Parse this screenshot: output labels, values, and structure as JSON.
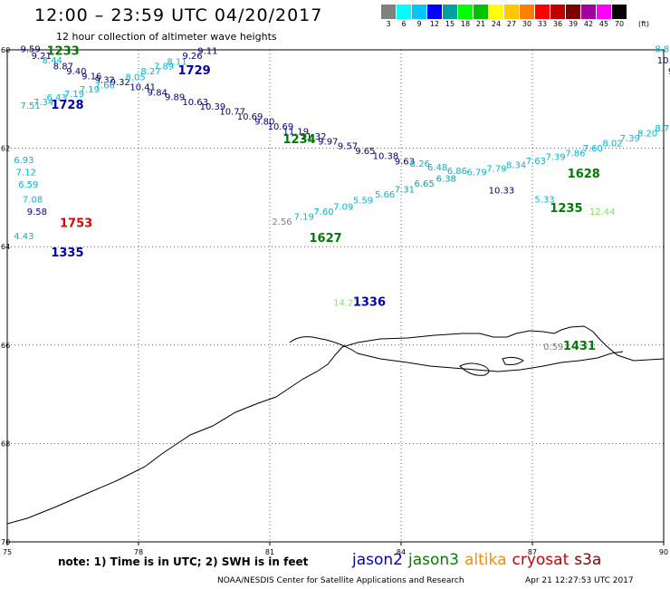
{
  "header": {
    "title": "12:00 – 23:59 UTC 04/20/2017",
    "subtitle": "12 hour collection of altimeter wave heights"
  },
  "colorbar": {
    "colors": [
      "#808080",
      "#00ffff",
      "#00c8ff",
      "#0000ff",
      "#00a0a0",
      "#00ff00",
      "#00c000",
      "#ffff00",
      "#ffc800",
      "#ff8000",
      "#ff0000",
      "#c00000",
      "#800000",
      "#a000a0",
      "#ff00ff",
      "#000000"
    ],
    "labels": [
      "3",
      "6",
      "9",
      "12",
      "15",
      "18",
      "21",
      "24",
      "27",
      "30",
      "33",
      "36",
      "39",
      "42",
      "45",
      "70"
    ],
    "unit": "(ft)"
  },
  "map": {
    "lon_ticks": [
      "75",
      "78",
      "81",
      "84",
      "87",
      "90"
    ],
    "lat_ticks": [
      "60",
      "62",
      "64",
      "66",
      "68",
      "70"
    ],
    "satellite_colors": {
      "jason2": "#0000cc",
      "jason3": "#008000",
      "altika": "#ff8c00",
      "cryosat": "#cc0000",
      "s3a": "#8b0000"
    },
    "swh_colors": {
      "cyan": "#00b8d8",
      "teal": "#0aa0b0",
      "green": "#00a000",
      "lightgreen": "#88e060",
      "navy": "#000080",
      "gray": "#808080"
    },
    "time_labels": [
      {
        "text": "1233",
        "color": "green",
        "lon": 75.9,
        "lat": 60.1
      },
      {
        "text": "1729",
        "color": "navy",
        "lon": 78.9,
        "lat": 60.5
      },
      {
        "text": "1728",
        "color": "navy",
        "lon": 76.0,
        "lat": 61.2
      },
      {
        "text": "1234",
        "color": "green",
        "lon": 81.3,
        "lat": 61.9
      },
      {
        "text": "1628",
        "color": "green",
        "lon": 87.8,
        "lat": 62.6
      },
      {
        "text": "1235",
        "color": "green",
        "lon": 87.4,
        "lat": 63.3
      },
      {
        "text": "1753",
        "color": "red",
        "lon": 76.2,
        "lat": 63.6
      },
      {
        "text": "1627",
        "color": "green",
        "lon": 81.9,
        "lat": 63.9
      },
      {
        "text": "1335",
        "color": "navy",
        "lon": 76.0,
        "lat": 64.2
      },
      {
        "text": "1336",
        "color": "navy",
        "lon": 82.9,
        "lat": 65.2
      },
      {
        "text": "1431",
        "color": "green",
        "lon": 87.7,
        "lat": 66.1
      }
    ],
    "swh_values": [
      {
        "text": "9.59",
        "color": "navy",
        "lon": 75.3,
        "lat": 60.05
      },
      {
        "text": "9.21",
        "color": "navy",
        "lon": 75.55,
        "lat": 60.18
      },
      {
        "text": "8.44",
        "color": "cyan",
        "lon": 75.8,
        "lat": 60.28
      },
      {
        "text": "8.87",
        "color": "navy",
        "lon": 76.05,
        "lat": 60.4
      },
      {
        "text": "9.40",
        "color": "navy",
        "lon": 76.35,
        "lat": 60.5
      },
      {
        "text": "9.16",
        "color": "navy",
        "lon": 76.7,
        "lat": 60.6
      },
      {
        "text": "9.32",
        "color": "navy",
        "lon": 77.0,
        "lat": 60.67
      },
      {
        "text": "9.32",
        "color": "navy",
        "lon": 77.35,
        "lat": 60.72
      },
      {
        "text": "8.05",
        "color": "cyan",
        "lon": 77.7,
        "lat": 60.62
      },
      {
        "text": "8.27",
        "color": "cyan",
        "lon": 78.05,
        "lat": 60.5
      },
      {
        "text": "7.89",
        "color": "cyan",
        "lon": 78.35,
        "lat": 60.4
      },
      {
        "text": "8.11",
        "color": "cyan",
        "lon": 78.65,
        "lat": 60.3
      },
      {
        "text": "9.26",
        "color": "navy",
        "lon": 79.0,
        "lat": 60.18
      },
      {
        "text": "9.11",
        "color": "navy",
        "lon": 79.35,
        "lat": 60.08
      },
      {
        "text": "7.51",
        "color": "cyan",
        "lon": 75.3,
        "lat": 61.2
      },
      {
        "text": "7.34",
        "color": "cyan",
        "lon": 75.6,
        "lat": 61.12
      },
      {
        "text": "6.43",
        "color": "cyan",
        "lon": 75.9,
        "lat": 61.03
      },
      {
        "text": "7.19",
        "color": "cyan",
        "lon": 76.3,
        "lat": 60.96
      },
      {
        "text": "7.19",
        "color": "cyan",
        "lon": 76.65,
        "lat": 60.87
      },
      {
        "text": "7.66",
        "color": "cyan",
        "lon": 77.0,
        "lat": 60.78
      },
      {
        "text": "10.41",
        "color": "navy",
        "lon": 77.8,
        "lat": 60.82
      },
      {
        "text": "9.84",
        "color": "navy",
        "lon": 78.2,
        "lat": 60.93
      },
      {
        "text": "9.89",
        "color": "navy",
        "lon": 78.6,
        "lat": 61.02
      },
      {
        "text": "10.63",
        "color": "navy",
        "lon": 79.0,
        "lat": 61.12
      },
      {
        "text": "10.39",
        "color": "navy",
        "lon": 79.4,
        "lat": 61.22
      },
      {
        "text": "10.77",
        "color": "navy",
        "lon": 79.85,
        "lat": 61.32
      },
      {
        "text": "10.69",
        "color": "navy",
        "lon": 80.25,
        "lat": 61.42
      },
      {
        "text": "9.80",
        "color": "navy",
        "lon": 80.65,
        "lat": 61.52
      },
      {
        "text": "10.69",
        "color": "navy",
        "lon": 80.95,
        "lat": 61.62
      },
      {
        "text": "11.19",
        "color": "navy",
        "lon": 81.3,
        "lat": 61.72
      },
      {
        "text": "11.32",
        "color": "navy",
        "lon": 81.7,
        "lat": 61.82
      },
      {
        "text": "9.97",
        "color": "navy",
        "lon": 82.1,
        "lat": 61.92
      },
      {
        "text": "9.57",
        "color": "navy",
        "lon": 82.55,
        "lat": 62.02
      },
      {
        "text": "9.65",
        "color": "navy",
        "lon": 82.95,
        "lat": 62.12
      },
      {
        "text": "10.38",
        "color": "navy",
        "lon": 83.35,
        "lat": 62.22
      },
      {
        "text": "9.63",
        "color": "navy",
        "lon": 83.85,
        "lat": 62.33
      },
      {
        "text": "10.33",
        "color": "navy",
        "lon": 86.0,
        "lat": 62.92
      },
      {
        "text": "6.93",
        "color": "cyan",
        "lon": 75.15,
        "lat": 62.3
      },
      {
        "text": "7.12",
        "color": "cyan",
        "lon": 75.2,
        "lat": 62.55
      },
      {
        "text": "6.59",
        "color": "cyan",
        "lon": 75.25,
        "lat": 62.8
      },
      {
        "text": "7.08",
        "color": "cyan",
        "lon": 75.35,
        "lat": 63.1
      },
      {
        "text": "9.58",
        "color": "navy",
        "lon": 75.45,
        "lat": 63.35
      },
      {
        "text": "4.43",
        "color": "cyan",
        "lon": 75.15,
        "lat": 63.85
      },
      {
        "text": "2.56",
        "color": "gray",
        "lon": 81.05,
        "lat": 63.55
      },
      {
        "text": "7.19",
        "color": "cyan",
        "lon": 81.55,
        "lat": 63.45
      },
      {
        "text": "7.60",
        "color": "cyan",
        "lon": 82.0,
        "lat": 63.35
      },
      {
        "text": "7.09",
        "color": "cyan",
        "lon": 82.45,
        "lat": 63.25
      },
      {
        "text": "5.59",
        "color": "cyan",
        "lon": 82.9,
        "lat": 63.12
      },
      {
        "text": "5.66",
        "color": "cyan",
        "lon": 83.4,
        "lat": 63.0
      },
      {
        "text": "7.31",
        "color": "teal",
        "lon": 83.85,
        "lat": 62.9
      },
      {
        "text": "6.65",
        "color": "teal",
        "lon": 84.3,
        "lat": 62.78
      },
      {
        "text": "6.38",
        "color": "teal",
        "lon": 84.8,
        "lat": 62.68
      },
      {
        "text": "8.26",
        "color": "cyan",
        "lon": 84.2,
        "lat": 62.38
      },
      {
        "text": "6.48",
        "color": "cyan",
        "lon": 84.6,
        "lat": 62.45
      },
      {
        "text": "6.86",
        "color": "cyan",
        "lon": 85.05,
        "lat": 62.52
      },
      {
        "text": "6.79",
        "color": "cyan",
        "lon": 85.5,
        "lat": 62.55
      },
      {
        "text": "7.79",
        "color": "cyan",
        "lon": 85.95,
        "lat": 62.48
      },
      {
        "text": "8.34",
        "color": "cyan",
        "lon": 86.4,
        "lat": 62.4
      },
      {
        "text": "7.63",
        "color": "cyan",
        "lon": 86.85,
        "lat": 62.32
      },
      {
        "text": "7.39",
        "color": "cyan",
        "lon": 87.3,
        "lat": 62.24
      },
      {
        "text": "7.86",
        "color": "cyan",
        "lon": 87.75,
        "lat": 62.16
      },
      {
        "text": "7.60",
        "color": "cyan",
        "lon": 88.15,
        "lat": 62.06
      },
      {
        "text": "8.02",
        "color": "cyan",
        "lon": 88.6,
        "lat": 61.96
      },
      {
        "text": "7.39",
        "color": "cyan",
        "lon": 89.0,
        "lat": 61.86
      },
      {
        "text": "8.20",
        "color": "cyan",
        "lon": 89.4,
        "lat": 61.76
      },
      {
        "text": "8.79",
        "color": "cyan",
        "lon": 89.8,
        "lat": 61.66
      },
      {
        "text": "10.37",
        "color": "navy",
        "lon": 90.3,
        "lat": 61.56
      },
      {
        "text": "5.33",
        "color": "cyan",
        "lon": 87.05,
        "lat": 63.1
      },
      {
        "text": "12.44",
        "color": "lightgreen",
        "lon": 88.3,
        "lat": 63.35
      },
      {
        "text": "14.27",
        "color": "lightgreen",
        "lon": 82.45,
        "lat": 65.2
      },
      {
        "text": "0.59",
        "color": "gray",
        "lon": 87.25,
        "lat": 66.1
      },
      {
        "text": "8.82",
        "color": "cyan",
        "lon": 89.8,
        "lat": 60.05
      },
      {
        "text": "10.39",
        "color": "navy",
        "lon": 89.85,
        "lat": 60.28
      },
      {
        "text": "9.03",
        "color": "navy",
        "lon": 90.1,
        "lat": 60.5
      },
      {
        "text": "10.4",
        "color": "navy",
        "lon": 90.2,
        "lat": 60.72
      }
    ]
  },
  "footer": {
    "note": "note:  1) Time is in UTC;  2) SWH is in feet",
    "legend": [
      {
        "name": "jason2",
        "color": "#0000cc"
      },
      {
        "name": "jason3",
        "color": "#008000"
      },
      {
        "name": "altika",
        "color": "#ff8c00"
      },
      {
        "name": "cryosat",
        "color": "#cc0000"
      },
      {
        "name": "s3a",
        "color": "#8b0000"
      }
    ],
    "credit": "NOAA/NESDIS Center for Satellite Applications and Research",
    "timestamp": "Apr 21 12:27:53 UTC 2017"
  }
}
